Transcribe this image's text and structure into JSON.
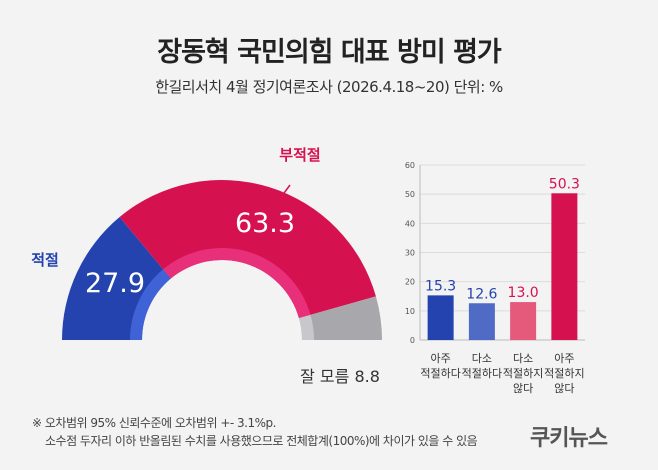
{
  "title": "장동혁 국민의힘 대표 방미 평가",
  "subtitle": "한길리서치 4월 정기여론조사 (2026.4.18~20) 단위: %",
  "notes": [
    "※ 오차범위 95% 신뢰수준에 오차범위 +- 3.1%p.",
    "소수점 두자리 이하 반올림된 수치를 사용했으므로 전체합계(100%)에 차이가 있을 수 있음"
  ],
  "logo": "쿠키뉴스",
  "chart_data": [
    {
      "type": "pie",
      "subtype": "half-donut",
      "slices": [
        {
          "label": "적절",
          "value": 27.9,
          "color": "#2443ae"
        },
        {
          "label": "부적절",
          "value": 63.3,
          "color": "#d6114f"
        },
        {
          "label": "잘 모름",
          "value": 8.8,
          "color": "#a8a8ac"
        }
      ]
    },
    {
      "type": "bar",
      "categories": [
        "아주\n적절하다",
        "다소\n적절하다",
        "다소\n적절하지\n않다",
        "아주\n적절하지\n않다"
      ],
      "values": [
        15.3,
        12.6,
        13.0,
        50.3
      ],
      "colors": [
        "#2443ae",
        "#4f6bc6",
        "#e55a7b",
        "#d6114f"
      ],
      "label_colors": [
        "#2443ae",
        "#2443ae",
        "#d6114f",
        "#d6114f"
      ],
      "ylim": [
        0,
        60
      ],
      "yticks": [
        0,
        10,
        20,
        30,
        40,
        50,
        60
      ],
      "grid": true
    }
  ]
}
